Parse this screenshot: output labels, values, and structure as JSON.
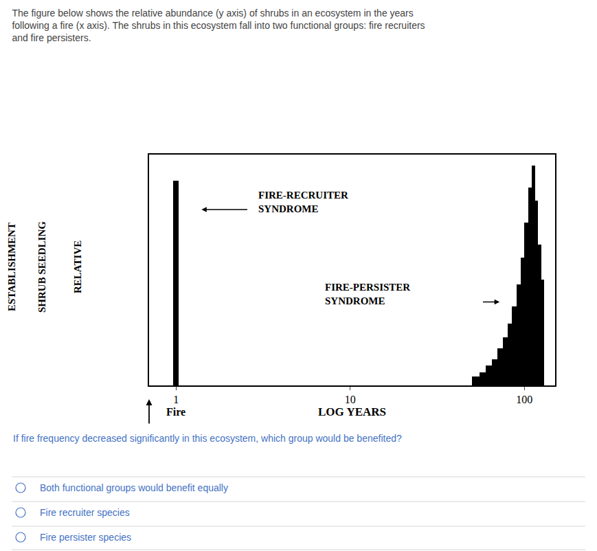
{
  "chart_data": {
    "type": "bar",
    "title": "The figure below shows the relative abundance (y axis) of shrubs in an ecosystem in the years\nfollowing a fire (x axis). The shrubs in this ecosystem fall into two functional groups: fire recruiters\nand fire persisters.",
    "xlabel": "LOG YEARS",
    "ylabel": [
      "RELATIVE",
      "SHRUB SEEDLING",
      "ESTABLISHMENT"
    ],
    "log": "x",
    "xlim": [
      0.7,
      150
    ],
    "xticks": [
      1,
      10,
      100
    ],
    "ylim": [
      0,
      1.05
    ],
    "yticks": [],
    "tick_labels": "x",
    "grid": false,
    "color": "#000000",
    "series": [
      {
        "x": [
          1.0
        ],
        "values": [
          0.93
        ]
      },
      {
        "x": [
          50,
          55,
          60,
          65,
          70,
          75,
          80,
          85,
          90,
          95,
          100,
          105,
          110,
          115,
          120,
          125
        ],
        "values": [
          0.04,
          0.06,
          0.09,
          0.12,
          0.17,
          0.22,
          0.28,
          0.36,
          0.46,
          0.58,
          0.74,
          0.9,
          1.0,
          0.84,
          0.64,
          0.48
        ]
      }
    ],
    "annotations": [
      "FIRE-RECRUITER\nSYNDROME",
      "FIRE-PERSISTER\nSYNDROME",
      "Fire"
    ],
    "question": {
      "text": "If fire frequency decreased significantly in this ecosystem, which group would be benefited?",
      "color": "#4472c4"
    },
    "options": {
      "texts": [
        "Both functional groups would benefit equally",
        "Fire recruiter species",
        "Fire persister species"
      ],
      "color": "#4472c4"
    }
  }
}
